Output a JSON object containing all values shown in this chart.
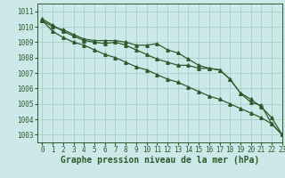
{
  "title": "Graphe pression niveau de la mer (hPa)",
  "background_color": "#cde8e8",
  "plot_background": "#cde8e8",
  "grid_color": "#a8cfc8",
  "line_color": "#2d5a2d",
  "xlim": [
    -0.5,
    23
  ],
  "ylim": [
    1002.5,
    1011.5
  ],
  "yticks": [
    1003,
    1004,
    1005,
    1006,
    1007,
    1008,
    1009,
    1010,
    1011
  ],
  "xticks": [
    0,
    1,
    2,
    3,
    4,
    5,
    6,
    7,
    8,
    9,
    10,
    11,
    12,
    13,
    14,
    15,
    16,
    17,
    18,
    19,
    20,
    21,
    22,
    23
  ],
  "series1": [
    1010.5,
    1010.1,
    1009.7,
    1009.4,
    1009.1,
    1009.0,
    1008.9,
    1009.0,
    1008.8,
    1008.5,
    1008.2,
    1007.9,
    1007.7,
    1007.5,
    1007.5,
    1007.3,
    1007.3,
    1007.2,
    1006.6,
    1005.7,
    1005.3,
    1004.8,
    1004.1,
    1003.0
  ],
  "series2": [
    1010.4,
    1010.0,
    1009.8,
    1009.5,
    1009.2,
    1009.1,
    1009.1,
    1009.1,
    1009.0,
    1008.8,
    1008.8,
    1008.9,
    1008.5,
    1008.3,
    1007.9,
    1007.5,
    1007.3,
    1007.2,
    1006.6,
    1005.7,
    1005.1,
    1004.9,
    1003.7,
    1003.0
  ],
  "series3": [
    1010.4,
    1009.7,
    1009.3,
    1009.0,
    1008.8,
    1008.5,
    1008.2,
    1008.0,
    1007.7,
    1007.4,
    1007.2,
    1006.9,
    1006.6,
    1006.4,
    1006.1,
    1005.8,
    1005.5,
    1005.3,
    1005.0,
    1004.7,
    1004.4,
    1004.1,
    1003.7,
    1003.0
  ],
  "marker": "^",
  "marker_size": 2.5,
  "line_width": 0.9,
  "title_fontsize": 7,
  "tick_fontsize": 5.5,
  "ylabel_fontsize": 6
}
